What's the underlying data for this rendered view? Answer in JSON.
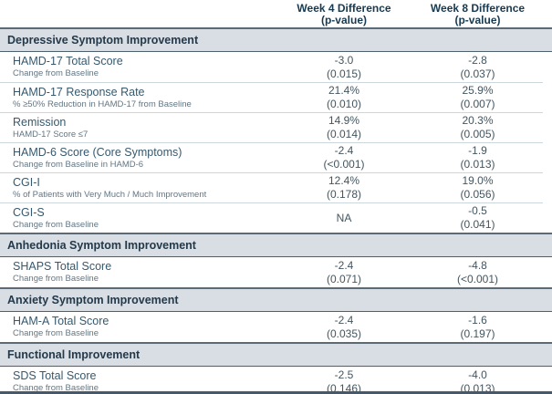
{
  "table": {
    "columns": [
      {
        "title": "Week 4 Difference",
        "subtitle": "(p-value)"
      },
      {
        "title": "Week 8 Difference",
        "subtitle": "(p-value)"
      }
    ],
    "sections": [
      {
        "title": "Depressive Symptom Improvement",
        "rows": [
          {
            "label": "HAMD-17 Total Score",
            "sublabel": "Change from Baseline",
            "week4_value": "-3.0",
            "week4_p": "(0.015)",
            "week8_value": "-2.8",
            "week8_p": "(0.037)"
          },
          {
            "label": "HAMD-17 Response Rate",
            "sublabel": "% ≥50% Reduction in HAMD-17 from Baseline",
            "week4_value": "21.4%",
            "week4_p": "(0.010)",
            "week8_value": "25.9%",
            "week8_p": "(0.007)"
          },
          {
            "label": "Remission",
            "sublabel": "HAMD-17 Score ≤7",
            "week4_value": "14.9%",
            "week4_p": "(0.014)",
            "week8_value": "20.3%",
            "week8_p": "(0.005)"
          },
          {
            "label": "HAMD-6 Score (Core Symptoms)",
            "sublabel": "Change from Baseline in HAMD-6",
            "week4_value": "-2.4",
            "week4_p": "(<0.001)",
            "week8_value": "-1.9",
            "week8_p": "(0.013)"
          },
          {
            "label": "CGI-I",
            "sublabel": "% of Patients with Very Much / Much Improvement",
            "week4_value": "12.4%",
            "week4_p": "(0.178)",
            "week8_value": "19.0%",
            "week8_p": "(0.056)"
          },
          {
            "label": "CGI-S",
            "sublabel": "Change from Baseline",
            "week4_value": "NA",
            "week4_p": "",
            "week8_value": "-0.5",
            "week8_p": "(0.041)"
          }
        ]
      },
      {
        "title": "Anhedonia Symptom Improvement",
        "rows": [
          {
            "label": "SHAPS Total Score",
            "sublabel": "Change from Baseline",
            "week4_value": "-2.4",
            "week4_p": "(0.071)",
            "week8_value": "-4.8",
            "week8_p": "(<0.001)"
          }
        ]
      },
      {
        "title": "Anxiety Symptom Improvement",
        "rows": [
          {
            "label": "HAM-A Total Score",
            "sublabel": "Change from Baseline",
            "week4_value": "-2.4",
            "week4_p": "(0.035)",
            "week8_value": "-1.6",
            "week8_p": "(0.197)"
          }
        ]
      },
      {
        "title": "Functional Improvement",
        "rows": [
          {
            "label": "SDS Total Score",
            "sublabel": "Change from Baseline",
            "week4_value": "-2.5",
            "week4_p": "(0.146)",
            "week8_value": "-4.0",
            "week8_p": "(0.013)"
          }
        ]
      }
    ]
  },
  "colors": {
    "section_background": "#d8dee4",
    "section_border": "#5c6a76",
    "header_text": "#173a50",
    "row_label_text": "#36596e",
    "row_sublabel_text": "#627683",
    "value_text": "#43555f",
    "row_divider": "#ccd6dd",
    "table_bottom_border": "#46586a"
  }
}
